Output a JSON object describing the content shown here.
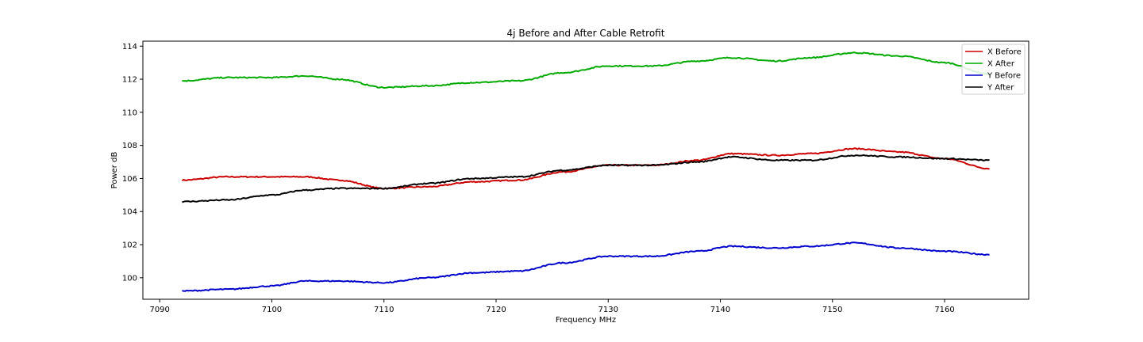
{
  "chart_data": {
    "type": "line",
    "title": "4j Before and After Cable Retrofit",
    "xlabel": "Frequency MHz",
    "ylabel": "Power dB",
    "xlim": [
      7088.5,
      7167.5
    ],
    "ylim": [
      98.7,
      114.3
    ],
    "xticks": [
      7090,
      7100,
      7110,
      7120,
      7130,
      7140,
      7150,
      7160
    ],
    "yticks": [
      100,
      102,
      104,
      106,
      108,
      110,
      112,
      114
    ],
    "grid": false,
    "legend_position": "top-right",
    "x": [
      7092,
      7096,
      7100,
      7103,
      7106,
      7110,
      7114,
      7118,
      7122,
      7126,
      7130,
      7134,
      7138,
      7141,
      7145,
      7148,
      7152,
      7156,
      7160,
      7164
    ],
    "series": [
      {
        "name": "X Before",
        "color": "#cc0000",
        "values": [
          105.9,
          106.1,
          106.1,
          106.1,
          105.9,
          105.4,
          105.5,
          105.8,
          105.9,
          106.4,
          106.8,
          106.8,
          107.1,
          107.5,
          107.4,
          107.5,
          107.8,
          107.6,
          107.2,
          106.6
        ]
      },
      {
        "name": "X After",
        "color": "#00aa00",
        "values": [
          111.9,
          112.1,
          112.1,
          112.2,
          112.0,
          111.5,
          111.6,
          111.8,
          111.9,
          112.4,
          112.8,
          112.8,
          113.1,
          113.3,
          113.1,
          113.3,
          113.6,
          113.4,
          113.0,
          112.3
        ]
      },
      {
        "name": "Y Before",
        "color": "#0000cc",
        "values": [
          99.2,
          99.3,
          99.5,
          99.8,
          99.8,
          99.7,
          100.0,
          100.3,
          100.4,
          100.9,
          101.3,
          101.3,
          101.6,
          101.9,
          101.8,
          101.9,
          102.1,
          101.8,
          101.6,
          101.4
        ]
      },
      {
        "name": "Y After",
        "color": "#000000",
        "values": [
          104.6,
          104.7,
          105.0,
          105.3,
          105.4,
          105.4,
          105.7,
          106.0,
          106.1,
          106.5,
          106.8,
          106.8,
          107.0,
          107.3,
          107.1,
          107.1,
          107.4,
          107.3,
          107.2,
          107.1
        ]
      }
    ]
  }
}
